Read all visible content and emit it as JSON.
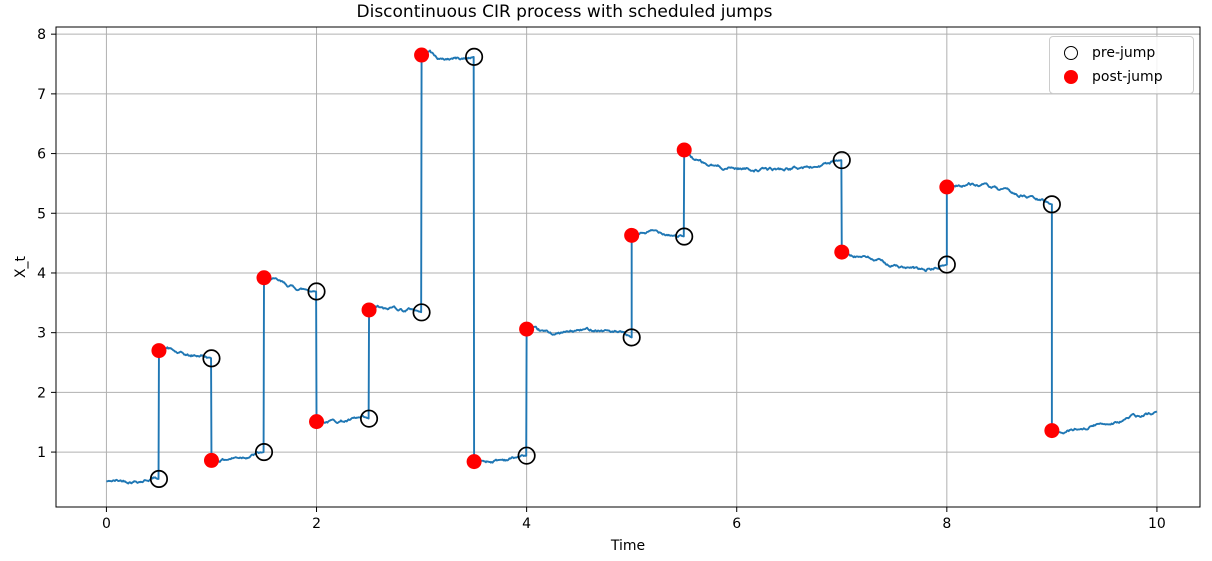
{
  "chart_data": {
    "type": "line",
    "title": "Discontinuous CIR process with scheduled jumps",
    "xlabel": "Time",
    "ylabel": "X_t",
    "xlim": [
      -0.48,
      10.41
    ],
    "ylim": [
      0.08,
      8.12
    ],
    "xticks": [
      0,
      2,
      4,
      6,
      8,
      10
    ],
    "yticks": [
      1,
      2,
      3,
      4,
      5,
      6,
      7,
      8
    ],
    "grid": true,
    "legend": {
      "position": "upper right",
      "entries": [
        {
          "label": "pre-jump",
          "marker": "open-circle-icon",
          "color": "#000000"
        },
        {
          "label": "post-jump",
          "marker": "filled-circle-icon",
          "color": "#ff0000"
        }
      ]
    },
    "colors": {
      "line": "#1f77b4",
      "post_jump": "#ff0000",
      "pre_jump_edge": "#000000",
      "grid": "#b0b0b0",
      "spine": "#000000"
    },
    "jumps": [
      {
        "time": 0.5,
        "pre": 0.55,
        "post": 2.7
      },
      {
        "time": 1.0,
        "pre": 2.57,
        "post": 0.86
      },
      {
        "time": 1.5,
        "pre": 1.0,
        "post": 3.92
      },
      {
        "time": 2.0,
        "pre": 3.69,
        "post": 1.51
      },
      {
        "time": 2.5,
        "pre": 1.56,
        "post": 3.38
      },
      {
        "time": 3.0,
        "pre": 3.34,
        "post": 7.65
      },
      {
        "time": 3.5,
        "pre": 7.62,
        "post": 0.84
      },
      {
        "time": 4.0,
        "pre": 0.94,
        "post": 3.06
      },
      {
        "time": 5.0,
        "pre": 2.92,
        "post": 4.63
      },
      {
        "time": 5.5,
        "pre": 4.61,
        "post": 6.06
      },
      {
        "time": 7.0,
        "pre": 5.89,
        "post": 4.35
      },
      {
        "time": 8.0,
        "pre": 4.14,
        "post": 5.44
      },
      {
        "time": 9.0,
        "pre": 5.15,
        "post": 1.36
      }
    ],
    "path_end": {
      "time": 10.0,
      "value": 1.68
    },
    "series_segments": [
      {
        "waypoints": [
          [
            0,
            0.51
          ],
          [
            0.2,
            0.52
          ],
          [
            0.35,
            0.53
          ],
          [
            0.45,
            0.57
          ],
          [
            0.5,
            0.55
          ]
        ]
      },
      {
        "waypoints": [
          [
            0.5,
            2.7
          ],
          [
            0.58,
            2.74
          ],
          [
            0.68,
            2.65
          ],
          [
            0.8,
            2.6
          ],
          [
            0.9,
            2.62
          ],
          [
            1,
            2.57
          ]
        ]
      },
      {
        "waypoints": [
          [
            1,
            0.86
          ],
          [
            1.15,
            0.89
          ],
          [
            1.3,
            0.93
          ],
          [
            1.4,
            0.96
          ],
          [
            1.5,
            1.0
          ]
        ]
      },
      {
        "waypoints": [
          [
            1.5,
            3.92
          ],
          [
            1.58,
            3.89
          ],
          [
            1.7,
            3.8
          ],
          [
            1.82,
            3.74
          ],
          [
            1.92,
            3.72
          ],
          [
            2,
            3.69
          ]
        ]
      },
      {
        "waypoints": [
          [
            2,
            1.51
          ],
          [
            2.15,
            1.52
          ],
          [
            2.3,
            1.53
          ],
          [
            2.4,
            1.55
          ],
          [
            2.5,
            1.56
          ]
        ]
      },
      {
        "waypoints": [
          [
            2.5,
            3.38
          ],
          [
            2.58,
            3.43
          ],
          [
            2.66,
            3.37
          ],
          [
            2.74,
            3.42
          ],
          [
            2.84,
            3.38
          ],
          [
            2.92,
            3.4
          ],
          [
            3,
            3.34
          ]
        ]
      },
      {
        "waypoints": [
          [
            3,
            7.65
          ],
          [
            3.08,
            7.73
          ],
          [
            3.14,
            7.62
          ],
          [
            3.2,
            7.57
          ],
          [
            3.3,
            7.6
          ],
          [
            3.4,
            7.59
          ],
          [
            3.5,
            7.62
          ]
        ]
      },
      {
        "waypoints": [
          [
            3.5,
            0.84
          ],
          [
            3.65,
            0.85
          ],
          [
            3.8,
            0.88
          ],
          [
            3.92,
            0.92
          ],
          [
            4,
            0.94
          ]
        ]
      },
      {
        "waypoints": [
          [
            4,
            3.06
          ],
          [
            4.15,
            3.0
          ],
          [
            4.3,
            2.98
          ],
          [
            4.5,
            3.03
          ],
          [
            4.65,
            3.06
          ],
          [
            4.8,
            3.03
          ],
          [
            4.92,
            2.97
          ],
          [
            5,
            2.92
          ]
        ]
      },
      {
        "waypoints": [
          [
            5,
            4.63
          ],
          [
            5.1,
            4.67
          ],
          [
            5.2,
            4.69
          ],
          [
            5.3,
            4.68
          ],
          [
            5.4,
            4.65
          ],
          [
            5.5,
            4.61
          ]
        ]
      },
      {
        "waypoints": [
          [
            5.5,
            6.06
          ],
          [
            5.6,
            5.9
          ],
          [
            5.72,
            5.8
          ],
          [
            5.85,
            5.77
          ],
          [
            6.0,
            5.76
          ],
          [
            6.15,
            5.74
          ],
          [
            6.3,
            5.73
          ],
          [
            6.45,
            5.74
          ],
          [
            6.6,
            5.76
          ],
          [
            6.75,
            5.78
          ],
          [
            6.85,
            5.82
          ],
          [
            6.95,
            5.86
          ],
          [
            7,
            5.89
          ]
        ]
      },
      {
        "waypoints": [
          [
            7,
            4.35
          ],
          [
            7.15,
            4.3
          ],
          [
            7.3,
            4.22
          ],
          [
            7.5,
            4.12
          ],
          [
            7.65,
            4.06
          ],
          [
            7.8,
            4.04
          ],
          [
            7.9,
            4.08
          ],
          [
            8,
            4.14
          ]
        ]
      },
      {
        "waypoints": [
          [
            8,
            5.44
          ],
          [
            8.1,
            5.47
          ],
          [
            8.22,
            5.49
          ],
          [
            8.35,
            5.47
          ],
          [
            8.5,
            5.38
          ],
          [
            8.65,
            5.32
          ],
          [
            8.8,
            5.26
          ],
          [
            9,
            5.15
          ]
        ]
      },
      {
        "waypoints": [
          [
            9,
            1.36
          ],
          [
            9.1,
            1.33
          ],
          [
            9.2,
            1.38
          ],
          [
            9.35,
            1.43
          ],
          [
            9.5,
            1.48
          ],
          [
            9.65,
            1.53
          ],
          [
            9.78,
            1.6
          ],
          [
            9.85,
            1.58
          ],
          [
            10,
            1.68
          ]
        ]
      }
    ]
  }
}
